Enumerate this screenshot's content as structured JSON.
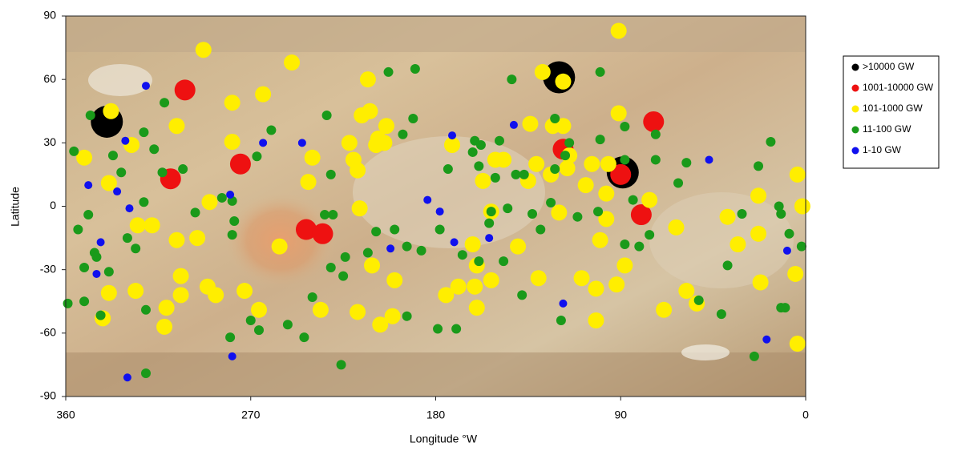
{
  "chart_data": {
    "type": "scatter",
    "x_label": "Longitude °W",
    "y_label": "Latitude",
    "xlim": [
      360,
      0
    ],
    "xticks": [
      360,
      270,
      180,
      90,
      0
    ],
    "ylim": [
      -90,
      90
    ],
    "yticks": [
      -90,
      -60,
      -30,
      0,
      30,
      60,
      90
    ],
    "legend": "right",
    "series": [
      {
        "name": ">10000 GW",
        "color": "#000000",
        "x": [
          340,
          120,
          89
        ],
        "values": [
          40,
          61,
          16
        ]
      },
      {
        "name": "1001-10000 GW",
        "color": "#ee1111",
        "x": [
          302,
          275,
          309,
          243,
          235,
          118,
          90,
          80,
          74
        ],
        "values": [
          55,
          20,
          13,
          -11,
          -13,
          27,
          15,
          -4,
          40
        ]
      },
      {
        "name": "101-1000 GW",
        "color": "#ffee00",
        "x": [
          293,
          91,
          250,
          128,
          118,
          213,
          264,
          279,
          338,
          91,
          212,
          216,
          204,
          306,
          123,
          134,
          118,
          351,
          328,
          279,
          222,
          208,
          205,
          209,
          172,
          240,
          220,
          218,
          151,
          147,
          115,
          116,
          131,
          124,
          104,
          96,
          4,
          339,
          242,
          157,
          135,
          107,
          97,
          23,
          290,
          76,
          1.6,
          217,
          153,
          120,
          38,
          325,
          318,
          97,
          63,
          306,
          296,
          256,
          162,
          140,
          100,
          33,
          23,
          304,
          211,
          160,
          88,
          5,
          339,
          326,
          291,
          287,
          273,
          200,
          169,
          161,
          153,
          130,
          109,
          102,
          92,
          58,
          53,
          22,
          304,
          311,
          266,
          236,
          218,
          160,
          175,
          69,
          342,
          312,
          207,
          201,
          102,
          4
        ],
        "values": [
          74,
          83,
          68,
          63.5,
          59,
          60,
          53,
          49,
          45,
          44,
          45,
          43,
          38,
          38,
          38,
          39,
          38,
          23,
          29,
          30.5,
          30,
          32,
          30,
          29,
          29,
          23,
          22,
          17,
          22,
          22,
          24,
          18,
          20,
          15,
          20,
          20,
          15,
          11,
          11.5,
          12,
          12,
          10,
          6,
          5,
          2,
          3,
          0,
          -1,
          -2.5,
          -3,
          -5,
          -9,
          -9,
          -6,
          -10,
          -16,
          -15,
          -19,
          -18,
          -19,
          -16,
          -18,
          -13,
          -33,
          -28,
          -28,
          -28,
          -32,
          -41,
          -40,
          -38,
          -42,
          -40,
          -35,
          -38,
          -38,
          -35,
          -34,
          -34,
          -39,
          -37,
          -40,
          -46,
          -36,
          -42,
          -48,
          -49,
          -49,
          -50,
          -48,
          -42,
          -49,
          -53,
          -57,
          -56,
          -52,
          -54,
          -65
        ]
      },
      {
        "name": "11-100 GW",
        "color": "#1a9a1a",
        "x": [
          348,
          312,
          203,
          190,
          143,
          100,
          233,
          191,
          122,
          260,
          322,
          317,
          337,
          333,
          313,
          303,
          267,
          231,
          196,
          161,
          158,
          162,
          174,
          159,
          149,
          151,
          141,
          137,
          115,
          122,
          117,
          100,
          88,
          88,
          73,
          73,
          58,
          62,
          17,
          23,
          356,
          349,
          354,
          351,
          346,
          345,
          339,
          330,
          326,
          322,
          297,
          284,
          279,
          278,
          279,
          234,
          230,
          231,
          224,
          225,
          209,
          213,
          200,
          194,
          187,
          178,
          167,
          159,
          153,
          154,
          147,
          145,
          133,
          129,
          124,
          111,
          101,
          88,
          84,
          76,
          81,
          38,
          31,
          13,
          12,
          8,
          2,
          359,
          351,
          343,
          321,
          321,
          280,
          270,
          266,
          252,
          244,
          240,
          226,
          194,
          179,
          170,
          138,
          119,
          52,
          41,
          25,
          12,
          10
        ],
        "values": [
          43,
          49,
          63.5,
          65,
          60,
          63.5,
          43,
          41.5,
          41.5,
          36,
          35,
          27,
          24,
          16,
          16,
          17.6,
          23.6,
          15,
          34,
          31,
          29,
          25.6,
          17.6,
          19,
          31,
          13.5,
          15,
          15,
          30,
          17.6,
          24,
          31.6,
          37.7,
          22,
          34,
          22,
          20.6,
          11,
          30.5,
          19,
          26,
          -4,
          -11,
          -29,
          -22,
          -24,
          -31,
          -15,
          -20,
          2,
          -3,
          4,
          2.5,
          -7,
          -13.5,
          -4,
          -4,
          -29,
          -24,
          -33,
          -12,
          -22,
          -11,
          -19,
          -21,
          -11,
          -23,
          -26,
          -2.5,
          -8,
          -26,
          -1,
          -3.6,
          -11,
          1.7,
          -5,
          -2.5,
          -18,
          3,
          -13.5,
          -19,
          -28,
          -3.6,
          0,
          -3.6,
          -13,
          -19,
          -46,
          -45,
          -51.6,
          -49,
          -79,
          -62,
          -54,
          -58.6,
          -56,
          -62,
          -43,
          -75,
          -52,
          -58,
          -58,
          -42,
          -54,
          -44.5,
          -51,
          -71,
          -48,
          -48
        ]
      },
      {
        "name": "1-10 GW",
        "color": "#1010ee",
        "x": [
          321,
          331,
          264,
          245,
          172,
          142,
          47,
          349,
          335,
          280,
          184,
          178,
          329,
          343,
          345,
          171,
          154,
          202,
          118,
          279,
          330,
          19,
          9
        ],
        "values": [
          57,
          31,
          30,
          30,
          33.5,
          38.5,
          22,
          10,
          7,
          5.5,
          3,
          -2.5,
          -1,
          -17,
          -32,
          -17,
          -15,
          -20,
          -46,
          -71,
          -81,
          -63,
          -21
        ]
      }
    ]
  }
}
